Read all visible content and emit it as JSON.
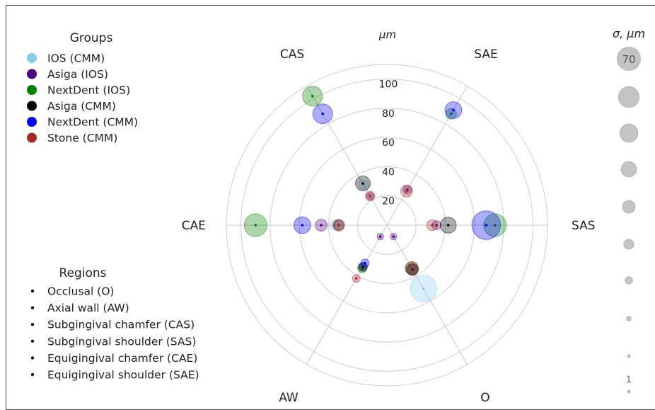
{
  "chart_data": {
    "type": "polar-bubble",
    "title": "",
    "radial_label": "μm",
    "radial_ticks": [
      "20",
      "40",
      "60",
      "80",
      "100"
    ],
    "radial_tick_values": [
      20,
      40,
      60,
      80,
      100
    ],
    "rmax": 110,
    "grid": true,
    "axes": [
      {
        "key": "CAS",
        "label": "CAS",
        "angle_deg": 120
      },
      {
        "key": "SAE",
        "label": "SAE",
        "angle_deg": 60
      },
      {
        "key": "SAS",
        "label": "SAS",
        "angle_deg": 0
      },
      {
        "key": "O",
        "label": "O",
        "angle_deg": -60
      },
      {
        "key": "AW",
        "label": "AW",
        "angle_deg": -120
      },
      {
        "key": "CAE",
        "label": "CAE",
        "angle_deg": 180
      }
    ],
    "groups_title": "Groups",
    "groups": [
      {
        "name": "IOS (CMM)",
        "color": "#87ceeb"
      },
      {
        "name": "Asiga (IOS)",
        "color": "#4b0082"
      },
      {
        "name": "NextDent (IOS)",
        "color": "#008000"
      },
      {
        "name": "Asiga (CMM)",
        "color": "#000000"
      },
      {
        "name": "NextDent  (CMM)",
        "color": "#0000ff"
      },
      {
        "name": "Stone (CMM)",
        "color": "#a52a2a"
      }
    ],
    "regions_title": "Regions",
    "regions": [
      "Occlusal (O)",
      "Axial wall (AW)",
      "Subgingival chamfer (CAS)",
      "Subgingival shoulder (SAS)",
      "Equigingival chamfer (CAE)",
      "Equigingival shoulder (SAE)"
    ],
    "size_legend_title": "σ, μm",
    "size_legend_top_label": "70",
    "size_legend_bottom_label": "1",
    "size_legend_values": [
      70,
      62,
      54,
      46,
      38,
      30,
      22,
      14,
      7,
      1
    ],
    "series": [
      {
        "name": "IOS (CMM)",
        "points": [
          {
            "axis": "O",
            "r": 50,
            "sigma": 45
          },
          {
            "axis": "CAS",
            "r": 32,
            "sigma": 17
          },
          {
            "axis": "CAE",
            "r": 36,
            "sigma": 17
          },
          {
            "axis": "AW",
            "r": 32,
            "sigma": 13
          }
        ]
      },
      {
        "name": "Asiga (IOS)",
        "points": [
          {
            "axis": "O",
            "r": 9,
            "sigma": 11
          },
          {
            "axis": "AW",
            "r": 9,
            "sigma": 11
          },
          {
            "axis": "CAE",
            "r": 45,
            "sigma": 20
          },
          {
            "axis": "SAS",
            "r": 34,
            "sigma": 15
          },
          {
            "axis": "SAE",
            "r": 28,
            "sigma": 14
          },
          {
            "axis": "O",
            "r": 35,
            "sigma": 17
          },
          {
            "axis": "CAS",
            "r": 23,
            "sigma": 12
          },
          {
            "axis": "AW",
            "r": 33,
            "sigma": 12
          }
        ]
      },
      {
        "name": "NextDent (IOS)",
        "points": [
          {
            "axis": "CAE",
            "r": 90,
            "sigma": 38
          },
          {
            "axis": "SAS",
            "r": 74,
            "sigma": 38
          },
          {
            "axis": "CAS",
            "r": 102,
            "sigma": 33
          },
          {
            "axis": "SAE",
            "r": 88,
            "sigma": 18
          },
          {
            "axis": "O",
            "r": 34,
            "sigma": 22
          },
          {
            "axis": "AW",
            "r": 34,
            "sigma": 15
          }
        ]
      },
      {
        "name": "Asiga (CMM)",
        "points": [
          {
            "axis": "SAS",
            "r": 42,
            "sigma": 27
          },
          {
            "axis": "CAS",
            "r": 33,
            "sigma": 25
          },
          {
            "axis": "O",
            "r": 35,
            "sigma": 20
          },
          {
            "axis": "CAE",
            "r": 33,
            "sigma": 17
          },
          {
            "axis": "AW",
            "r": 33,
            "sigma": 15
          }
        ]
      },
      {
        "name": "NextDent  (CMM)",
        "points": [
          {
            "axis": "SAS",
            "r": 68,
            "sigma": 48
          },
          {
            "axis": "CAS",
            "r": 88,
            "sigma": 33
          },
          {
            "axis": "SAE",
            "r": 91,
            "sigma": 28
          },
          {
            "axis": "CAE",
            "r": 58,
            "sigma": 28
          },
          {
            "axis": "AW",
            "r": 30,
            "sigma": 14
          }
        ]
      },
      {
        "name": "Stone (CMM)",
        "points": [
          {
            "axis": "SAS",
            "r": 31,
            "sigma": 18
          },
          {
            "axis": "CAE",
            "r": 33,
            "sigma": 20
          },
          {
            "axis": "SAE",
            "r": 27,
            "sigma": 20
          },
          {
            "axis": "CAS",
            "r": 23,
            "sigma": 16
          },
          {
            "axis": "O",
            "r": 34,
            "sigma": 22
          },
          {
            "axis": "AW",
            "r": 42,
            "sigma": 13
          }
        ]
      }
    ]
  }
}
